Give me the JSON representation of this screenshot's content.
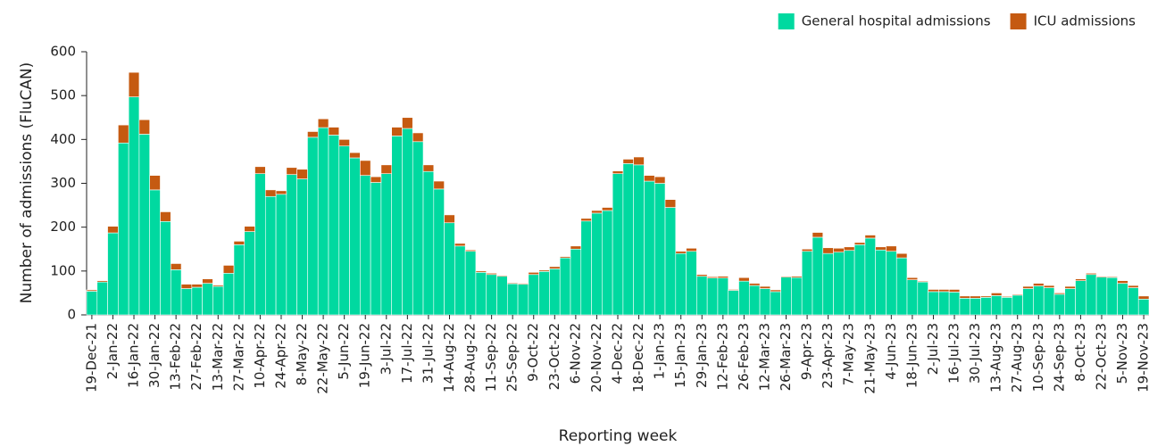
{
  "chart_data": {
    "type": "stacked-bar",
    "y_label": "Number of admissions (FluCAN)",
    "x_label": "Reporting week",
    "legend": "top-right",
    "ylim": [
      0,
      600
    ],
    "yticks": [
      0,
      100,
      200,
      300,
      400,
      500,
      600
    ],
    "categories": [
      "19-Dec-21",
      null,
      "2-Jan-22",
      null,
      "16-Jan-22",
      null,
      "30-Jan-22",
      null,
      "13-Feb-22",
      null,
      "27-Feb-22",
      null,
      "13-Mar-22",
      null,
      "27-Mar-22",
      null,
      "10-Apr-22",
      null,
      "24-Apr-22",
      null,
      "8-May-22",
      null,
      "22-May-22",
      null,
      "5-Jun-22",
      null,
      "19-Jun-22",
      null,
      "3-Jul-22",
      null,
      "17-Jul-22",
      null,
      "31-Jul-22",
      null,
      "14-Aug-22",
      null,
      "28-Aug-22",
      null,
      "11-Sep-22",
      null,
      "25-Sep-22",
      null,
      "9-Oct-22",
      null,
      "23-Oct-22",
      null,
      "6-Nov-22",
      null,
      "20-Nov-22",
      null,
      "4-Dec-22",
      null,
      "18-Dec-22",
      null,
      "1-Jan-23",
      null,
      "15-Jan-23",
      null,
      "29-Jan-23",
      null,
      "12-Feb-23",
      null,
      "26-Feb-23",
      null,
      "12-Mar-23",
      null,
      "26-Mar-23",
      null,
      "9-Apr-23",
      null,
      "23-Apr-23",
      null,
      "7-May-23",
      null,
      "21-May-23",
      null,
      "4-Jun-23",
      null,
      "18-Jun-23",
      null,
      "2-Jul-23",
      null,
      "16-Jul-23",
      null,
      "30-Jul-23",
      null,
      "13-Aug-23",
      null,
      "27-Aug-23",
      null,
      "10-Sep-23",
      null,
      "24-Sep-23",
      null,
      "8-Oct-23",
      null,
      "22-Oct-23",
      null,
      "5-Nov-23",
      null,
      "19-Nov-23"
    ],
    "series": [
      {
        "name": "General hospital admissions",
        "color": "#00d9a0",
        "values": [
          54,
          75,
          187,
          392,
          497,
          412,
          285,
          213,
          103,
          60,
          63,
          72,
          65,
          95,
          160,
          190,
          322,
          270,
          275,
          320,
          310,
          405,
          427,
          410,
          385,
          358,
          318,
          302,
          322,
          408,
          425,
          395,
          327,
          287,
          210,
          157,
          145,
          97,
          92,
          88,
          71,
          70,
          92,
          99,
          105,
          130,
          150,
          214,
          232,
          238,
          322,
          345,
          342,
          305,
          300,
          245,
          140,
          145,
          88,
          84,
          84,
          56,
          77,
          67,
          60,
          53,
          86,
          85,
          145,
          177,
          140,
          143,
          147,
          160,
          175,
          148,
          145,
          130,
          80,
          75,
          53,
          53,
          52,
          38,
          38,
          40,
          44,
          40,
          45,
          60,
          66,
          62,
          47,
          60,
          78,
          92,
          86,
          85,
          72,
          62,
          36
        ]
      },
      {
        "name": "ICU admissions",
        "color": "#c55a11",
        "values": [
          3,
          3,
          15,
          41,
          56,
          33,
          33,
          22,
          14,
          10,
          7,
          10,
          3,
          18,
          8,
          12,
          16,
          15,
          8,
          16,
          22,
          13,
          20,
          18,
          15,
          12,
          34,
          13,
          20,
          20,
          25,
          20,
          15,
          18,
          18,
          6,
          3,
          3,
          3,
          2,
          2,
          2,
          5,
          3,
          5,
          3,
          7,
          6,
          6,
          7,
          6,
          10,
          18,
          13,
          15,
          18,
          5,
          7,
          4,
          3,
          4,
          2,
          8,
          5,
          5,
          4,
          2,
          3,
          5,
          11,
          13,
          9,
          8,
          5,
          7,
          7,
          12,
          10,
          5,
          2,
          5,
          5,
          6,
          5,
          5,
          3,
          6,
          2,
          2,
          5,
          6,
          5,
          3,
          5,
          4,
          3,
          2,
          2,
          6,
          5,
          7
        ]
      }
    ]
  }
}
